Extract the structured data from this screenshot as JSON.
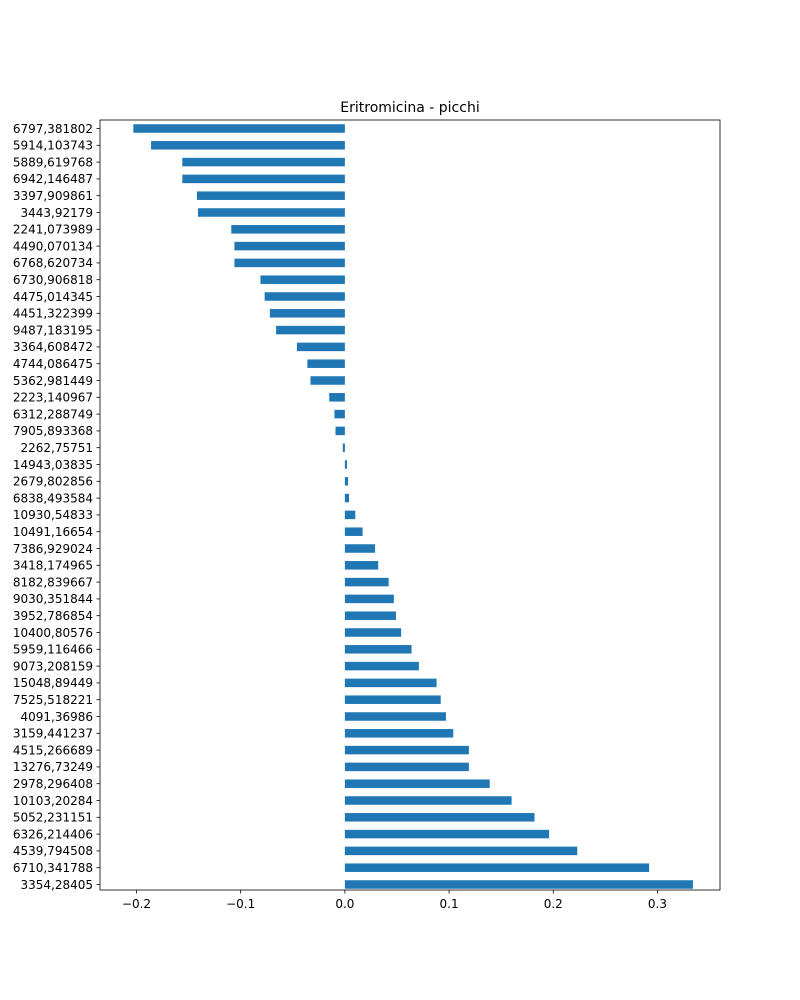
{
  "chart_data": {
    "type": "bar",
    "orientation": "horizontal",
    "title": "Eritromicina - picchi",
    "xlabel": "",
    "ylabel": "",
    "xlim": [
      -0.235,
      0.36
    ],
    "xticks": [
      -0.2,
      -0.1,
      0.0,
      0.1,
      0.2,
      0.3
    ],
    "xtick_labels": [
      "−0.2",
      "−0.1",
      "0.0",
      "0.1",
      "0.2",
      "0.3"
    ],
    "grid": false,
    "bar_color": "#1f77b4",
    "categories": [
      "6797,381802",
      "5914,103743",
      "5889,619768",
      "6942,146487",
      "3397,909861",
      "3443,92179",
      "2241,073989",
      "4490,070134",
      "6768,620734",
      "6730,906818",
      "4475,014345",
      "4451,322399",
      "9487,183195",
      "3364,608472",
      "4744,086475",
      "5362,981449",
      "2223,140967",
      "6312,288749",
      "7905,893368",
      "2262,75751",
      "14943,03835",
      "2679,802856",
      "6838,493584",
      "10930,54833",
      "10491,16654",
      "7386,929024",
      "3418,174965",
      "8182,839667",
      "9030,351844",
      "3952,786854",
      "10400,80576",
      "5959,116466",
      "9073,208159",
      "15048,89449",
      "7525,518221",
      "4091,36986",
      "3159,441237",
      "4515,266689",
      "13276,73249",
      "2978,296408",
      "10103,20284",
      "5052,231151",
      "6326,214406",
      "4539,794508",
      "6710,341788",
      "3354,28405"
    ],
    "values": [
      -0.203,
      -0.186,
      -0.156,
      -0.156,
      -0.142,
      -0.141,
      -0.109,
      -0.106,
      -0.106,
      -0.081,
      -0.077,
      -0.072,
      -0.066,
      -0.046,
      -0.036,
      -0.033,
      -0.015,
      -0.01,
      -0.009,
      -0.002,
      0.002,
      0.003,
      0.004,
      0.01,
      0.017,
      0.029,
      0.032,
      0.042,
      0.047,
      0.049,
      0.054,
      0.064,
      0.071,
      0.088,
      0.092,
      0.097,
      0.104,
      0.119,
      0.119,
      0.139,
      0.16,
      0.182,
      0.196,
      0.223,
      0.292,
      0.334
    ]
  }
}
